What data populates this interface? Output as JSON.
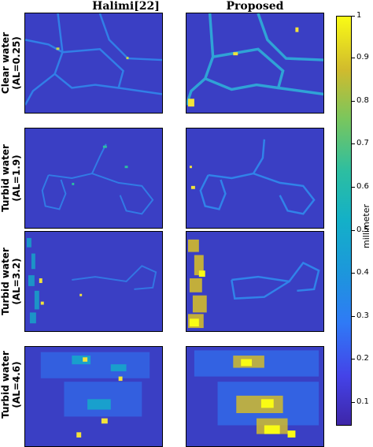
{
  "columns": [
    "Halimi[22]",
    "Proposed"
  ],
  "rows": [
    {
      "line1": "Clear water",
      "line2": "(AL=0.25)"
    },
    {
      "line1": "Turbid water",
      "line2": "(AL=1.9)"
    },
    {
      "line1": "Turbid water",
      "line2": "(AL=3.2)"
    },
    {
      "line1": "Turbid water",
      "line2": "(AL=4.6)"
    }
  ],
  "colorbar": {
    "label": "millimeter",
    "ticks": [
      "0.1",
      "0.2",
      "0.3",
      "0.4",
      "0.5",
      "0.6",
      "0.7",
      "0.8",
      "0.9",
      "1"
    ],
    "min": 0.05,
    "max": 1.0,
    "colormap": "parula"
  }
}
